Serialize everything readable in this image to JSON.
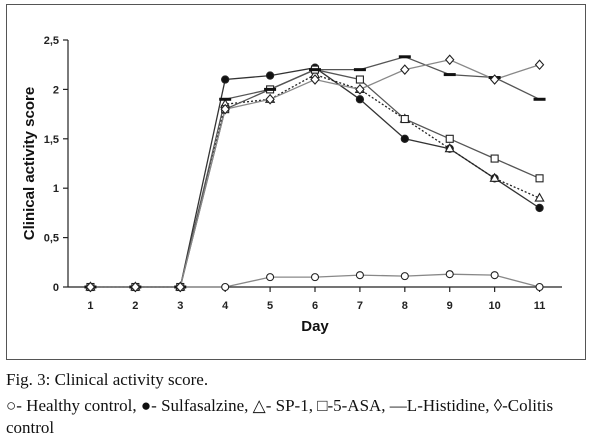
{
  "chart_data": {
    "type": "line",
    "xlabel": "Day",
    "ylabel": "Clinical activity score",
    "x": [
      1,
      2,
      3,
      4,
      5,
      6,
      7,
      8,
      9,
      10,
      11
    ],
    "xlim": [
      0.5,
      11.5
    ],
    "ylim": [
      0,
      2.5
    ],
    "y_ticks": [
      "0",
      "0,5",
      "1",
      "1,5",
      "2",
      "2,5"
    ],
    "grid": false,
    "series": [
      {
        "marker": "circle-open",
        "color": "#888888",
        "dash": "solid",
        "values": [
          0,
          0,
          0,
          0,
          0.1,
          0.1,
          0.12,
          0.11,
          0.13,
          0.12,
          0
        ]
      },
      {
        "marker": "circle-filled",
        "color": "#333333",
        "dash": "solid",
        "values": [
          0,
          0,
          0,
          2.1,
          2.14,
          2.22,
          1.9,
          1.5,
          1.4,
          1.1,
          0.8
        ]
      },
      {
        "marker": "triangle-open",
        "color": "#222222",
        "dash": "dotted",
        "values": [
          0,
          0,
          0,
          1.85,
          1.9,
          2.15,
          2.0,
          1.7,
          1.4,
          1.1,
          0.9
        ]
      },
      {
        "marker": "square-open",
        "color": "#555555",
        "dash": "solid",
        "values": [
          0,
          0,
          0,
          1.8,
          2.0,
          2.2,
          2.1,
          1.7,
          1.5,
          1.3,
          1.1
        ]
      },
      {
        "marker": "dash",
        "color": "#555555",
        "dash": "solid",
        "values": [
          0,
          0,
          0,
          1.9,
          2.0,
          2.2,
          2.2,
          2.33,
          2.15,
          2.12,
          1.9
        ]
      },
      {
        "marker": "diamond-open",
        "color": "#888888",
        "dash": "solid",
        "values": [
          0,
          0,
          0,
          1.8,
          1.9,
          2.1,
          2.0,
          2.2,
          2.3,
          2.1,
          2.25
        ]
      }
    ]
  },
  "caption": {
    "title": "Fig. 3: Clinical activity score.",
    "legend_text": "○- Healthy control, ●- Sulfasalzine, △- SP-1, □-5-ASA, —L-Histidine, ◊-Colitis control"
  }
}
